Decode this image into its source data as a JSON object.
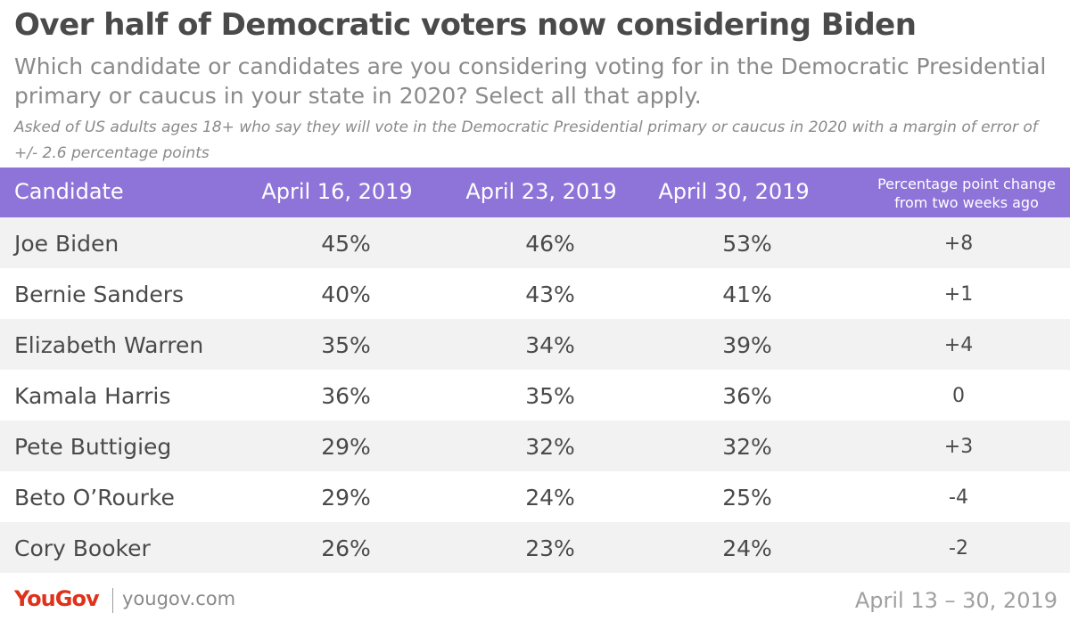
{
  "header": {
    "title": "Over half of Democratic voters now considering Biden",
    "subtitle": "Which candidate or candidates are you considering voting for in the Democratic Presidential primary or caucus in your state in 2020? Select all that apply.",
    "note": "Asked of US adults ages 18+ who say they will vote in the Democratic Presidential primary or caucus in 2020 with a margin of error of +/- 2.6 percentage points"
  },
  "table": {
    "columns": [
      "Candidate",
      "April 16, 2019",
      "April 23, 2019",
      "April 30, 2019",
      "Percentage point change from two weeks ago"
    ],
    "rows": [
      {
        "name": "Joe Biden",
        "v0": "45%",
        "v1": "46%",
        "v2": "53%",
        "change": "+8"
      },
      {
        "name": "Bernie Sanders",
        "v0": "40%",
        "v1": "43%",
        "v2": "41%",
        "change": "+1"
      },
      {
        "name": "Elizabeth Warren",
        "v0": "35%",
        "v1": "34%",
        "v2": "39%",
        "change": "+4"
      },
      {
        "name": "Kamala Harris",
        "v0": "36%",
        "v1": "35%",
        "v2": "36%",
        "change": "0"
      },
      {
        "name": "Pete Buttigieg",
        "v0": "29%",
        "v1": "32%",
        "v2": "32%",
        "change": "+3"
      },
      {
        "name": "Beto O’Rourke",
        "v0": "29%",
        "v1": "24%",
        "v2": "25%",
        "change": "-4"
      },
      {
        "name": "Cory Booker",
        "v0": "26%",
        "v1": "23%",
        "v2": "24%",
        "change": "-2"
      }
    ]
  },
  "footer": {
    "logo": "YouGov",
    "site": "yougov.com",
    "date_range": "April 13 – 30, 2019"
  },
  "colors": {
    "header_bg": "#8e74d8",
    "stripe": "#f2f2f2",
    "logo": "#e0311a"
  },
  "chart_data": {
    "type": "table",
    "title": "Over half of Democratic voters now considering Biden",
    "columns": [
      "Candidate",
      "April 16, 2019",
      "April 23, 2019",
      "April 30, 2019",
      "Percentage point change from two weeks ago"
    ],
    "categories": [
      "Joe Biden",
      "Bernie Sanders",
      "Elizabeth Warren",
      "Kamala Harris",
      "Pete Buttigieg",
      "Beto O’Rourke",
      "Cory Booker"
    ],
    "series": [
      {
        "name": "April 16, 2019",
        "values": [
          45,
          40,
          35,
          36,
          29,
          29,
          26
        ]
      },
      {
        "name": "April 23, 2019",
        "values": [
          46,
          43,
          34,
          35,
          32,
          24,
          23
        ]
      },
      {
        "name": "April 30, 2019",
        "values": [
          53,
          41,
          39,
          36,
          32,
          25,
          24
        ]
      },
      {
        "name": "Percentage point change from two weeks ago",
        "values": [
          8,
          1,
          4,
          0,
          3,
          -4,
          -2
        ]
      }
    ]
  }
}
